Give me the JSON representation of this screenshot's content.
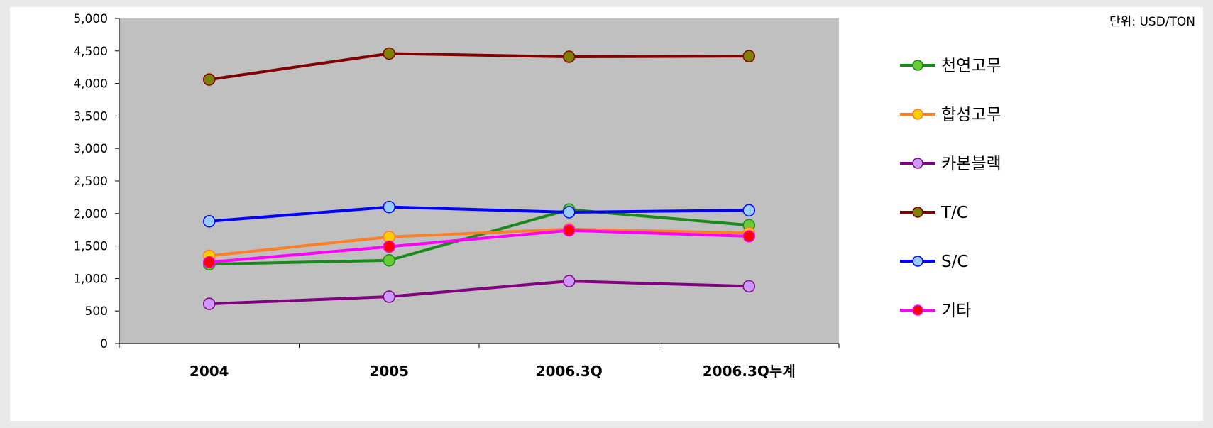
{
  "chart_data": {
    "type": "line",
    "unit": "단위: USD/TON",
    "categories": [
      "2004",
      "2005",
      "2006.3Q",
      "2006.3Q누계"
    ],
    "ylim": [
      0,
      5000
    ],
    "yticks": [
      "0",
      "500",
      "1,000",
      "1,500",
      "2,000",
      "2,500",
      "3,000",
      "3,500",
      "4,000",
      "4,500",
      "5,000"
    ],
    "ytick_values": [
      0,
      500,
      1000,
      1500,
      2000,
      2500,
      3000,
      3500,
      4000,
      4500,
      5000
    ],
    "grid": false,
    "plot_background": "#c0c0c0",
    "legend_position": "right",
    "series": [
      {
        "name": "천연고무",
        "values": [
          1220,
          1280,
          2060,
          1820
        ],
        "line_color": "#1a8a1a",
        "marker_color": "#66cc33"
      },
      {
        "name": "합성고무",
        "values": [
          1350,
          1640,
          1760,
          1700
        ],
        "line_color": "#ff7f27",
        "marker_color": "#ffcc00"
      },
      {
        "name": "카본블랙",
        "values": [
          610,
          720,
          960,
          880
        ],
        "line_color": "#800080",
        "marker_color": "#cc99ff"
      },
      {
        "name": "T/C",
        "values": [
          4060,
          4460,
          4410,
          4420
        ],
        "line_color": "#800000",
        "marker_color": "#808000"
      },
      {
        "name": "S/C",
        "values": [
          1880,
          2100,
          2020,
          2050
        ],
        "line_color": "#0000ff",
        "marker_color": "#99ccff"
      },
      {
        "name": "기타",
        "values": [
          1250,
          1490,
          1740,
          1650
        ],
        "line_color": "#ff00ff",
        "marker_color": "#ff0000"
      }
    ]
  }
}
